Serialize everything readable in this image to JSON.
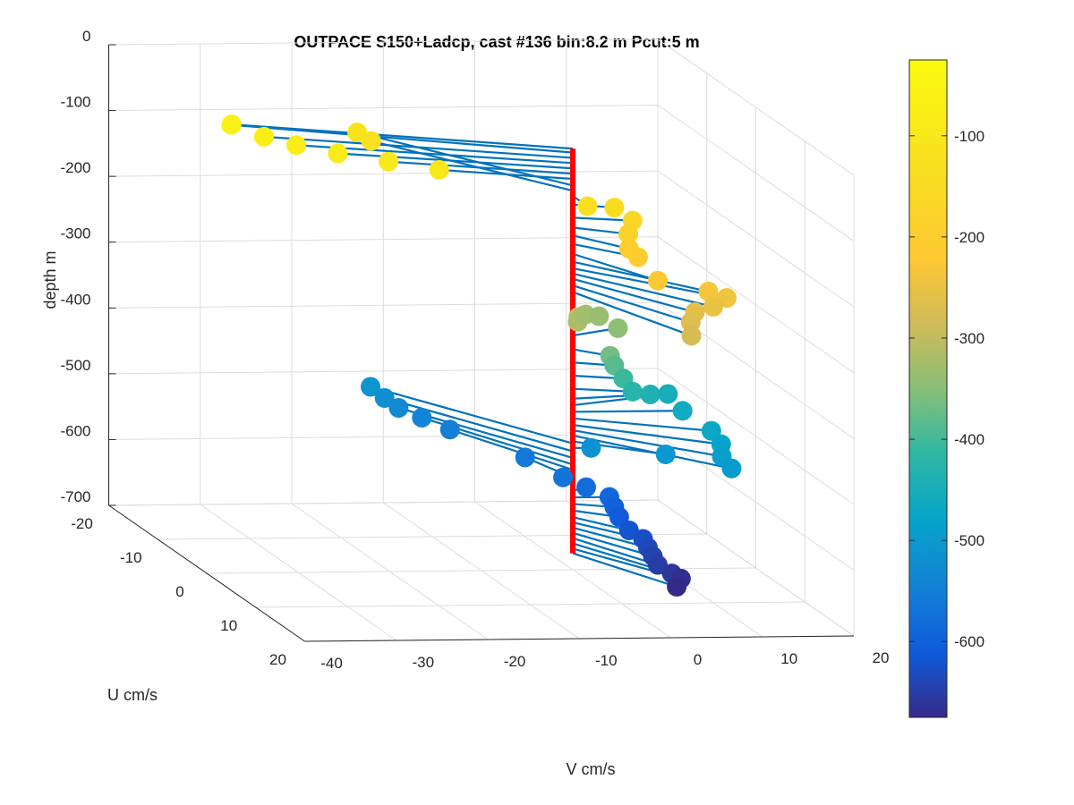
{
  "chart_data": {
    "type": "scatter",
    "title": "OUTPACE S150+Ladcp, cast #136 bin:8.2 m  Pcut:5 m",
    "zlabel": "depth m",
    "xlabel": "U cm/s",
    "ylabel": "V cm/s",
    "z_ticks": [
      "0",
      "-100",
      "-200",
      "-300",
      "-400",
      "-500",
      "-600",
      "-700"
    ],
    "u_ticks": [
      "-20",
      "-10",
      "0",
      "10",
      "20"
    ],
    "v_ticks": [
      "-40",
      "-30",
      "-20",
      "-10",
      "0",
      "10",
      "20"
    ],
    "colorbar_ticks": [
      "-100",
      "-200",
      "-300",
      "-400",
      "-500",
      "-600"
    ],
    "zlim": [
      -700,
      0
    ],
    "ulim": [
      -20,
      20
    ],
    "vlim": [
      -40,
      20
    ],
    "colorbar_range": [
      -675,
      -25
    ],
    "colormap": "parula",
    "grid": true,
    "stem_color": "#0072BD",
    "line_color": "#FF0000",
    "points": [
      {
        "depth": -60,
        "u": -8,
        "v": -33
      },
      {
        "depth": -66,
        "u": -9,
        "v": -32.5
      },
      {
        "depth": -74,
        "u": -7,
        "v": -30
      },
      {
        "depth": -82,
        "u": -6,
        "v": -27
      },
      {
        "depth": -90,
        "u": -5,
        "v": -23
      },
      {
        "depth": -98,
        "u": -4,
        "v": -18
      },
      {
        "depth": -106,
        "u": -3,
        "v": -13
      },
      {
        "depth": -116,
        "u": -16,
        "v": -15
      },
      {
        "depth": -124,
        "u": -15,
        "v": -14
      },
      {
        "depth": -132,
        "u": 3,
        "v": 0
      },
      {
        "depth": -145,
        "u": 1,
        "v": 4
      },
      {
        "depth": -165,
        "u": 1,
        "v": 6
      },
      {
        "depth": -180,
        "u": 2,
        "v": 5
      },
      {
        "depth": -192,
        "u": 4,
        "v": 4
      },
      {
        "depth": -205,
        "u": 4,
        "v": 5
      },
      {
        "depth": -220,
        "u": 8,
        "v": 5
      },
      {
        "depth": -232,
        "u": 9,
        "v": 10
      },
      {
        "depth": -242,
        "u": 9,
        "v": 12
      },
      {
        "depth": -250,
        "u": 10,
        "v": 10
      },
      {
        "depth": -258,
        "u": 10,
        "v": 8
      },
      {
        "depth": -268,
        "u": 11,
        "v": 7
      },
      {
        "depth": -278,
        "u": 13,
        "v": 6
      },
      {
        "depth": -300,
        "u": 3,
        "v": -1
      },
      {
        "depth": -318,
        "u": 1,
        "v": 0
      },
      {
        "depth": -328,
        "u": -3,
        "v": 3
      },
      {
        "depth": -336,
        "u": -4,
        "v": 5
      },
      {
        "depth": -344,
        "u": -2,
        "v": 6
      },
      {
        "depth": -365,
        "u": 2,
        "v": 3
      },
      {
        "depth": -385,
        "u": 1,
        "v": 4
      },
      {
        "depth": -405,
        "u": 1,
        "v": 5
      },
      {
        "depth": -425,
        "u": 1,
        "v": 6
      },
      {
        "depth": -440,
        "u": -1,
        "v": 9
      },
      {
        "depth": -450,
        "u": -3,
        "v": 12
      },
      {
        "depth": -460,
        "u": 0,
        "v": 12
      },
      {
        "depth": -470,
        "u": 4,
        "v": 13
      },
      {
        "depth": -480,
        "u": 6,
        "v": 13
      },
      {
        "depth": -488,
        "u": 8,
        "v": 12
      },
      {
        "depth": -496,
        "u": 10,
        "v": 12
      },
      {
        "depth": -505,
        "u": 4,
        "v": 8
      },
      {
        "depth": -515,
        "u": 0,
        "v": 2
      },
      {
        "depth": -508,
        "u": -17,
        "v": -13
      },
      {
        "depth": -520,
        "u": -16,
        "v": -12
      },
      {
        "depth": -530,
        "u": -15,
        "v": -11
      },
      {
        "depth": -540,
        "u": -14,
        "v": -9
      },
      {
        "depth": -548,
        "u": -12,
        "v": -7
      },
      {
        "depth": -560,
        "u": -6,
        "v": -2
      },
      {
        "depth": -570,
        "u": -2,
        "v": 0
      },
      {
        "depth": -580,
        "u": -1,
        "v": 2
      },
      {
        "depth": -590,
        "u": 0,
        "v": 4
      },
      {
        "depth": -600,
        "u": 1,
        "v": 4
      },
      {
        "depth": -610,
        "u": 2,
        "v": 4
      },
      {
        "depth": -620,
        "u": 4,
        "v": 4
      },
      {
        "depth": -628,
        "u": 5,
        "v": 5
      },
      {
        "depth": -636,
        "u": 6,
        "v": 5
      },
      {
        "depth": -644,
        "u": 7,
        "v": 5
      },
      {
        "depth": -652,
        "u": 8,
        "v": 5
      },
      {
        "depth": -660,
        "u": 9,
        "v": 6
      },
      {
        "depth": -668,
        "u": 9,
        "v": 7
      },
      {
        "depth": -675,
        "u": 10,
        "v": 6
      }
    ]
  }
}
